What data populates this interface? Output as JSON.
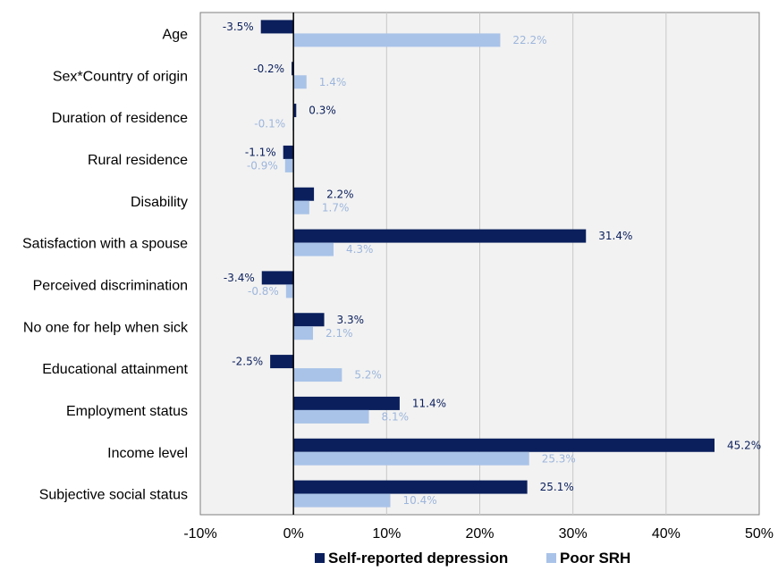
{
  "chart_data": {
    "type": "bar",
    "orientation": "horizontal",
    "categories": [
      "Age",
      "Sex*Country of origin",
      "Duration of residence",
      "Rural residence",
      "Disability",
      "Satisfaction with a spouse",
      "Perceived discrimination",
      "No one for help when sick",
      "Educational attainment",
      "Employment status",
      "Income level",
      "Subjective social status"
    ],
    "series": [
      {
        "name": "Self-reported depression",
        "color": "#0a1f5c",
        "values": [
          -3.5,
          -0.2,
          0.3,
          -1.1,
          2.2,
          31.4,
          -3.4,
          3.3,
          -2.5,
          11.4,
          45.2,
          25.1
        ],
        "labels": [
          "-3.5%",
          "-0.2%",
          "0.3%",
          "-1.1%",
          "2.2%",
          "31.4%",
          "-3.4%",
          "3.3%",
          "-2.5%",
          "11.4%",
          "45.2%",
          "25.1%"
        ]
      },
      {
        "name": "Poor SRH",
        "color": "#a9c3e8",
        "values": [
          22.2,
          1.4,
          -0.1,
          -0.9,
          1.7,
          4.3,
          -0.8,
          2.1,
          5.2,
          8.1,
          25.3,
          10.4
        ],
        "labels": [
          "22.2%",
          "1.4%",
          "-0.1%",
          "-0.9%",
          "1.7%",
          "4.3%",
          "-0.8%",
          "2.1%",
          "5.2%",
          "8.1%",
          "25.3%",
          "10.4%"
        ]
      }
    ],
    "xlim": [
      -10,
      50
    ],
    "xticks": [
      "-10%",
      "0%",
      "10%",
      "20%",
      "30%",
      "40%",
      "50%"
    ],
    "grid": true,
    "plot_background": "#f2f2f2",
    "legend_position": "bottom"
  }
}
